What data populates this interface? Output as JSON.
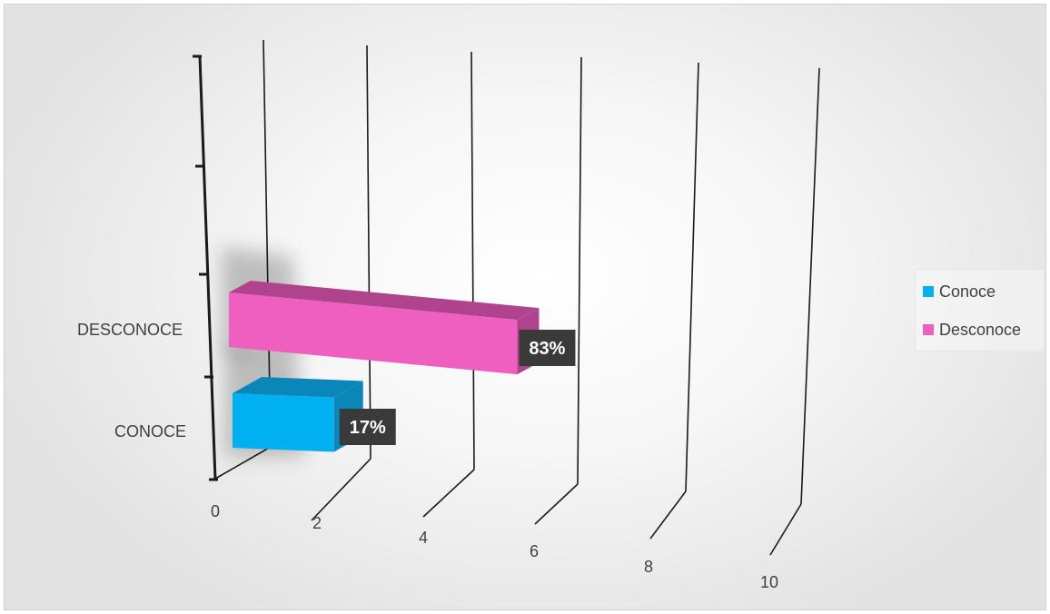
{
  "chart_data": {
    "type": "bar",
    "orientation": "horizontal",
    "style": "3d",
    "categories": [
      "CONOCE",
      "DESCONOCE"
    ],
    "series": [
      {
        "name": "Conoce",
        "values": [
          1,
          null
        ],
        "labels": [
          "17%",
          null
        ],
        "color": "#00b0f0"
      },
      {
        "name": "Desconoce",
        "values": [
          null,
          5.1
        ],
        "labels": [
          null,
          "83%"
        ],
        "color": "#ee5fbf"
      }
    ],
    "x_ticks": [
      "0",
      "2",
      "4",
      "6",
      "8",
      "10"
    ],
    "xlim": [
      0,
      10
    ],
    "grid": true,
    "legend_position": "right"
  }
}
